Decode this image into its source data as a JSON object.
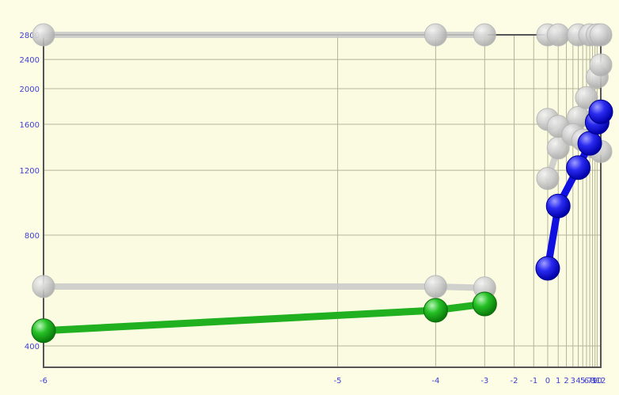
{
  "chart_data": {
    "type": "line",
    "x_scale": "reciprocal",
    "y_scale": "log",
    "x_ticks": [
      -6,
      -5,
      -4,
      -3,
      -2,
      -1,
      0,
      1,
      2,
      3,
      4,
      5,
      6,
      7,
      8,
      9,
      10,
      12
    ],
    "y_ticks": [
      400,
      800,
      1200,
      1600,
      2000,
      2400,
      2800
    ],
    "xlim": [
      -6,
      12
    ],
    "ylim": [
      350,
      2800
    ],
    "grid": true,
    "legend": "none",
    "series": [
      {
        "color": "#1010e0",
        "emphasis": "primary",
        "points": [
          [
            0,
            650
          ],
          [
            1,
            960
          ],
          [
            4,
            1220
          ],
          [
            7,
            1420
          ],
          [
            10,
            1620
          ],
          [
            12,
            1730
          ]
        ]
      },
      {
        "color": "#20b020",
        "emphasis": "primary",
        "points": [
          [
            -6,
            440
          ],
          [
            -4,
            500
          ],
          [
            -3,
            520
          ]
        ]
      },
      {
        "color": "#c8c8c8",
        "emphasis": "faded",
        "points": [
          [
            0,
            1140
          ],
          [
            1,
            1380
          ],
          [
            3,
            1530
          ],
          [
            4,
            1670
          ],
          [
            6,
            1890
          ],
          [
            10,
            2150
          ],
          [
            12,
            2320
          ]
        ]
      },
      {
        "color": "#c8c8c8",
        "emphasis": "faded",
        "points": [
          [
            0,
            1650
          ],
          [
            1,
            1580
          ],
          [
            3,
            1500
          ],
          [
            5,
            1450
          ],
          [
            8,
            1390
          ],
          [
            12,
            1350
          ]
        ]
      },
      {
        "color": "#c8c8c8",
        "emphasis": "faded",
        "points": [
          [
            0,
            2800
          ],
          [
            1,
            2800
          ],
          [
            4,
            2800
          ],
          [
            7,
            2800
          ],
          [
            10,
            2800
          ],
          [
            12,
            2800
          ]
        ]
      },
      {
        "color": "#c8c8c8",
        "emphasis": "faded",
        "points": [
          [
            -6,
            2800
          ],
          [
            -4,
            2800
          ],
          [
            -3,
            2800
          ]
        ]
      },
      {
        "color": "#c8c8c8",
        "emphasis": "faded",
        "points": [
          [
            -6,
            580
          ],
          [
            -4,
            580
          ],
          [
            -3,
            575
          ]
        ]
      }
    ]
  }
}
